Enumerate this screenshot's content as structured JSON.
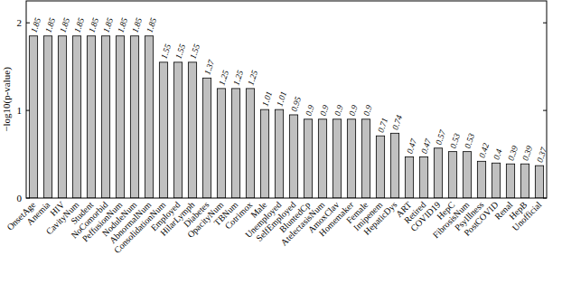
{
  "chart_data": {
    "type": "bar",
    "y_label": "−log10(p-value)",
    "categories": [
      "OnsetAge",
      "Anemia",
      "HIV",
      "CavityNum",
      "Student",
      "NoComorbid",
      "PeffusionNum",
      "NoduleNum",
      "AbnormalNum",
      "ConsolidationNum",
      "Employed",
      "HilarLymph",
      "Diabetes",
      "OpacityNum",
      "TBNum",
      "Cotrimox",
      "Male",
      "Unemployed",
      "SelfEmployed",
      "BluntedCp",
      "AtelectasisNum",
      "AmoxClav",
      "Homemaker",
      "Female",
      "Imipenem",
      "HepaticDys",
      "ART",
      "Retired",
      "COVID19",
      "HepC",
      "FibrosisNum",
      "PsyIllness",
      "PostCOVID",
      "Renal",
      "HepB",
      "Unofficial"
    ],
    "values": [
      1.85,
      1.85,
      1.85,
      1.85,
      1.85,
      1.85,
      1.85,
      1.85,
      1.85,
      1.55,
      1.55,
      1.55,
      1.37,
      1.25,
      1.25,
      1.25,
      1.01,
      1.01,
      0.95,
      0.9,
      0.9,
      0.9,
      0.9,
      0.9,
      0.71,
      0.74,
      0.47,
      0.47,
      0.57,
      0.53,
      0.53,
      0.42,
      0.4,
      0.39,
      0.39,
      0.37
    ],
    "color": "#c0c0c0",
    "ylim": [
      0,
      2.25
    ],
    "yticks": [
      0,
      1,
      2
    ],
    "grid": false,
    "data_labels": true
  }
}
